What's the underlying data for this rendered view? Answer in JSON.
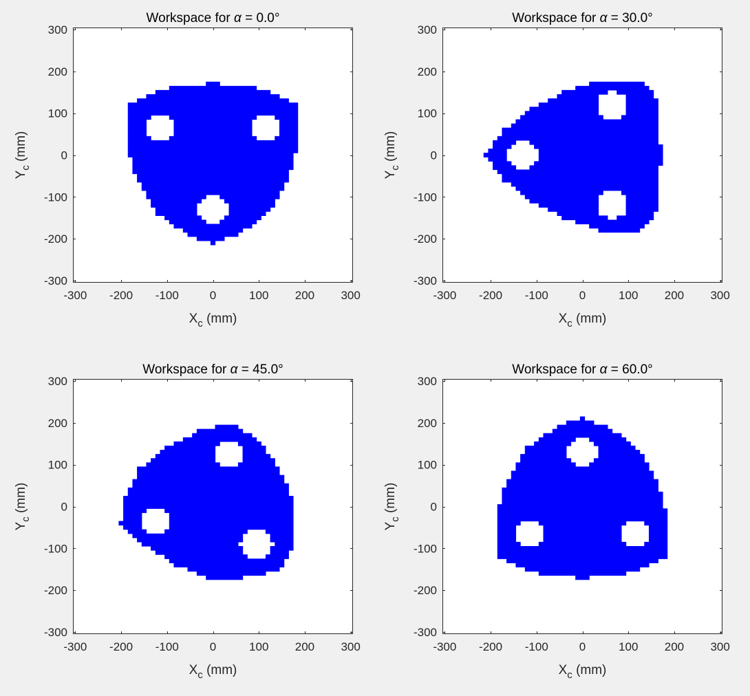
{
  "window": {
    "background": "#f0f0f0"
  },
  "colors": {
    "workspace_fill": "#0000ff",
    "hole_fill": "#ffffff",
    "axes_background": "#ffffff",
    "axis_color": "#262626"
  },
  "chart_data": [
    {
      "type": "scatter",
      "render": "filled-region",
      "title": "Workspace for α = 0.0°",
      "alpha_deg": 0.0,
      "xlabel": "X_c (mm)",
      "ylabel": "Y_c (mm)",
      "xlim": [
        -305,
        305
      ],
      "ylim": [
        -305,
        305
      ],
      "xticks": [
        -300,
        -200,
        -100,
        0,
        100,
        200,
        300
      ],
      "yticks": [
        -300,
        -200,
        -100,
        0,
        100,
        200,
        300
      ],
      "grid": false,
      "region_boundary": [
        [
          0,
          172
        ],
        [
          50,
          165
        ],
        [
          110,
          158
        ],
        [
          185,
          118
        ],
        [
          185,
          60
        ],
        [
          180,
          0
        ],
        [
          165,
          -60
        ],
        [
          120,
          -140
        ],
        [
          55,
          -190
        ],
        [
          0,
          -212
        ],
        [
          -55,
          -190
        ],
        [
          -120,
          -140
        ],
        [
          -165,
          -60
        ],
        [
          -180,
          0
        ],
        [
          -185,
          60
        ],
        [
          -185,
          118
        ],
        [
          -110,
          158
        ],
        [
          -50,
          165
        ]
      ],
      "holes": [
        {
          "cx": -115,
          "cy": 65,
          "r": 35
        },
        {
          "cx": 115,
          "cy": 65,
          "r": 35
        },
        {
          "cx": 0,
          "cy": -130,
          "r": 35
        }
      ]
    },
    {
      "type": "scatter",
      "render": "filled-region",
      "title": "Workspace for α = 30.0°",
      "alpha_deg": 30.0,
      "xlabel": "X_c (mm)",
      "ylabel": "Y_c (mm)",
      "xlim": [
        -305,
        305
      ],
      "ylim": [
        -305,
        305
      ],
      "xticks": [
        -300,
        -200,
        -100,
        0,
        100,
        200,
        300
      ],
      "yticks": [
        -300,
        -200,
        -100,
        0,
        100,
        200,
        300
      ],
      "grid": false,
      "region_boundary": [
        [
          -210,
          0
        ],
        [
          -170,
          60
        ],
        [
          -110,
          110
        ],
        [
          -40,
          150
        ],
        [
          40,
          180
        ],
        [
          125,
          180
        ],
        [
          160,
          140
        ],
        [
          165,
          60
        ],
        [
          175,
          0
        ],
        [
          165,
          -60
        ],
        [
          160,
          -140
        ],
        [
          125,
          -180
        ],
        [
          40,
          -180
        ],
        [
          -40,
          -150
        ],
        [
          -110,
          -110
        ],
        [
          -170,
          -60
        ]
      ],
      "holes": [
        {
          "cx": 65,
          "cy": 118,
          "r": 35
        },
        {
          "cx": -130,
          "cy": 0,
          "r": 35
        },
        {
          "cx": 65,
          "cy": -118,
          "r": 35
        }
      ]
    },
    {
      "type": "scatter",
      "render": "filled-region",
      "title": "Workspace for α = 45.0°",
      "alpha_deg": 45.0,
      "xlabel": "X_c (mm)",
      "ylabel": "Y_c (mm)",
      "xlim": [
        -305,
        305
      ],
      "ylim": [
        -305,
        305
      ],
      "xticks": [
        -300,
        -200,
        -100,
        0,
        100,
        200,
        300
      ],
      "yticks": [
        -300,
        -200,
        -100,
        0,
        100,
        200,
        300
      ],
      "grid": false,
      "region_boundary": [
        [
          -200,
          -40
        ],
        [
          -190,
          20
        ],
        [
          -160,
          90
        ],
        [
          -100,
          140
        ],
        [
          -30,
          180
        ],
        [
          40,
          200
        ],
        [
          100,
          160
        ],
        [
          150,
          80
        ],
        [
          175,
          10
        ],
        [
          175,
          -90
        ],
        [
          150,
          -150
        ],
        [
          100,
          -165
        ],
        [
          40,
          -175
        ],
        [
          -10,
          -170
        ],
        [
          -80,
          -140
        ],
        [
          -150,
          -90
        ]
      ],
      "holes": [
        {
          "cx": 35,
          "cy": 125,
          "r": 35
        },
        {
          "cx": -125,
          "cy": -35,
          "r": 35
        },
        {
          "cx": 95,
          "cy": -90,
          "r": 35
        }
      ]
    },
    {
      "type": "scatter",
      "render": "filled-region",
      "title": "Workspace for α = 60.0°",
      "alpha_deg": 60.0,
      "xlabel": "X_c (mm)",
      "ylabel": "Y_c (mm)",
      "xlim": [
        -305,
        305
      ],
      "ylim": [
        -305,
        305
      ],
      "xticks": [
        -300,
        -200,
        -100,
        0,
        100,
        200,
        300
      ],
      "yticks": [
        -300,
        -200,
        -100,
        0,
        100,
        200,
        300
      ],
      "grid": false,
      "region_boundary": [
        [
          0,
          212
        ],
        [
          55,
          190
        ],
        [
          120,
          140
        ],
        [
          165,
          60
        ],
        [
          180,
          0
        ],
        [
          185,
          -60
        ],
        [
          185,
          -118
        ],
        [
          110,
          -158
        ],
        [
          50,
          -165
        ],
        [
          0,
          -172
        ],
        [
          -50,
          -165
        ],
        [
          -110,
          -158
        ],
        [
          -185,
          -118
        ],
        [
          -185,
          -60
        ],
        [
          -180,
          0
        ],
        [
          -165,
          60
        ],
        [
          -120,
          140
        ],
        [
          -55,
          190
        ]
      ],
      "holes": [
        {
          "cx": 0,
          "cy": 130,
          "r": 35
        },
        {
          "cx": -115,
          "cy": -65,
          "r": 35
        },
        {
          "cx": 115,
          "cy": -65,
          "r": 35
        }
      ]
    }
  ]
}
